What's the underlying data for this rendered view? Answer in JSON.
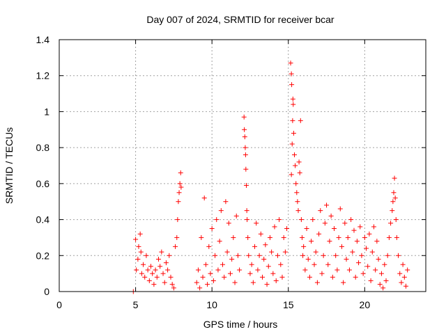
{
  "chart_data": {
    "type": "scatter",
    "title": "Day 007 of 2024, SRMTID for receiver bcar",
    "xlabel": "GPS time / hours",
    "ylabel": "SRMTID / TECUs",
    "xlim": [
      0,
      24
    ],
    "ylim": [
      0,
      1.4
    ],
    "xticks": [
      0,
      5,
      10,
      15,
      20
    ],
    "xtick_labels": [
      "0",
      "5",
      "10",
      "15",
      "20"
    ],
    "yticks": [
      0,
      0.2,
      0.4,
      0.6,
      0.8,
      1,
      1.2,
      1.4
    ],
    "ytick_labels": [
      "0",
      "0.2",
      "0.4",
      "0.6",
      "0.8",
      "1",
      "1.2",
      "1.4"
    ],
    "grid": true,
    "marker": "+",
    "color": "#ff0000",
    "series": [
      {
        "name": "SRMTID",
        "points": [
          [
            4.85,
            0.0
          ],
          [
            5.0,
            0.29
          ],
          [
            5.05,
            0.12
          ],
          [
            5.15,
            0.18
          ],
          [
            5.2,
            0.25
          ],
          [
            5.3,
            0.32
          ],
          [
            5.35,
            0.22
          ],
          [
            5.4,
            0.1
          ],
          [
            5.5,
            0.15
          ],
          [
            5.6,
            0.08
          ],
          [
            5.7,
            0.2
          ],
          [
            5.8,
            0.12
          ],
          [
            5.9,
            0.06
          ],
          [
            6.0,
            0.14
          ],
          [
            6.1,
            0.1
          ],
          [
            6.2,
            0.04
          ],
          [
            6.3,
            0.12
          ],
          [
            6.4,
            0.08
          ],
          [
            6.5,
            0.18
          ],
          [
            6.6,
            0.14
          ],
          [
            6.7,
            0.22
          ],
          [
            6.8,
            0.1
          ],
          [
            6.9,
            0.05
          ],
          [
            7.0,
            0.16
          ],
          [
            7.1,
            0.12
          ],
          [
            7.2,
            0.2
          ],
          [
            7.3,
            0.08
          ],
          [
            7.4,
            0.04
          ],
          [
            7.5,
            0.02
          ],
          [
            7.6,
            0.25
          ],
          [
            7.7,
            0.3
          ],
          [
            7.75,
            0.4
          ],
          [
            7.8,
            0.5
          ],
          [
            7.85,
            0.55
          ],
          [
            7.9,
            0.6
          ],
          [
            7.95,
            0.66
          ],
          [
            7.98,
            0.58
          ],
          [
            9.0,
            0.05
          ],
          [
            9.1,
            0.12
          ],
          [
            9.2,
            0.02
          ],
          [
            9.3,
            0.3
          ],
          [
            9.4,
            0.08
          ],
          [
            9.5,
            0.52
          ],
          [
            9.6,
            0.15
          ],
          [
            9.7,
            0.04
          ],
          [
            9.8,
            0.25
          ],
          [
            9.9,
            0.1
          ],
          [
            10.0,
            0.35
          ],
          [
            10.1,
            0.06
          ],
          [
            10.2,
            0.2
          ],
          [
            10.3,
            0.4
          ],
          [
            10.4,
            0.12
          ],
          [
            10.5,
            0.28
          ],
          [
            10.6,
            0.45
          ],
          [
            10.7,
            0.15
          ],
          [
            10.8,
            0.08
          ],
          [
            10.9,
            0.5
          ],
          [
            11.0,
            0.22
          ],
          [
            11.1,
            0.38
          ],
          [
            11.2,
            0.1
          ],
          [
            11.3,
            0.18
          ],
          [
            11.4,
            0.3
          ],
          [
            11.5,
            0.05
          ],
          [
            11.6,
            0.42
          ],
          [
            11.7,
            0.2
          ],
          [
            11.8,
            0.12
          ],
          [
            12.1,
            0.97
          ],
          [
            12.12,
            0.9
          ],
          [
            12.15,
            0.86
          ],
          [
            12.18,
            0.8
          ],
          [
            12.2,
            0.76
          ],
          [
            12.22,
            0.68
          ],
          [
            12.25,
            0.59
          ],
          [
            12.28,
            0.45
          ],
          [
            12.3,
            0.4
          ],
          [
            12.35,
            0.3
          ],
          [
            12.4,
            0.2
          ],
          [
            12.5,
            0.1
          ],
          [
            12.6,
            0.15
          ],
          [
            12.7,
            0.05
          ],
          [
            12.8,
            0.25
          ],
          [
            12.9,
            0.38
          ],
          [
            13.0,
            0.12
          ],
          [
            13.1,
            0.2
          ],
          [
            13.2,
            0.32
          ],
          [
            13.3,
            0.08
          ],
          [
            13.4,
            0.18
          ],
          [
            13.5,
            0.26
          ],
          [
            13.6,
            0.04
          ],
          [
            13.7,
            0.14
          ],
          [
            13.8,
            0.3
          ],
          [
            13.9,
            0.22
          ],
          [
            14.0,
            0.1
          ],
          [
            14.1,
            0.36
          ],
          [
            14.2,
            0.06
          ],
          [
            14.3,
            0.2
          ],
          [
            14.4,
            0.4
          ],
          [
            14.5,
            0.15
          ],
          [
            14.6,
            0.08
          ],
          [
            14.7,
            0.3
          ],
          [
            14.8,
            0.22
          ],
          [
            14.9,
            0.35
          ],
          [
            15.15,
            1.27
          ],
          [
            15.2,
            1.21
          ],
          [
            15.22,
            1.15
          ],
          [
            15.3,
            1.07
          ],
          [
            15.32,
            1.04
          ],
          [
            15.28,
            0.95
          ],
          [
            15.35,
            0.88
          ],
          [
            15.25,
            0.82
          ],
          [
            15.4,
            0.76
          ],
          [
            15.45,
            0.7
          ],
          [
            15.2,
            0.65
          ],
          [
            15.5,
            0.6
          ],
          [
            15.55,
            0.55
          ],
          [
            15.6,
            0.5
          ],
          [
            15.65,
            0.45
          ],
          [
            15.7,
            0.72
          ],
          [
            15.75,
            0.66
          ],
          [
            15.8,
            0.95
          ],
          [
            15.85,
            0.4
          ],
          [
            15.9,
            0.3
          ],
          [
            15.95,
            0.2
          ],
          [
            16.0,
            0.25
          ],
          [
            16.1,
            0.12
          ],
          [
            16.2,
            0.35
          ],
          [
            16.3,
            0.18
          ],
          [
            16.4,
            0.08
          ],
          [
            16.5,
            0.28
          ],
          [
            16.6,
            0.4
          ],
          [
            16.7,
            0.15
          ],
          [
            16.8,
            0.22
          ],
          [
            16.9,
            0.05
          ],
          [
            17.0,
            0.32
          ],
          [
            17.1,
            0.45
          ],
          [
            17.2,
            0.1
          ],
          [
            17.3,
            0.2
          ],
          [
            17.4,
            0.38
          ],
          [
            17.5,
            0.48
          ],
          [
            17.6,
            0.15
          ],
          [
            17.7,
            0.28
          ],
          [
            17.8,
            0.42
          ],
          [
            17.9,
            0.08
          ],
          [
            18.0,
            0.35
          ],
          [
            18.1,
            0.2
          ],
          [
            18.2,
            0.12
          ],
          [
            18.3,
            0.3
          ],
          [
            18.4,
            0.46
          ],
          [
            18.5,
            0.25
          ],
          [
            18.6,
            0.05
          ],
          [
            18.7,
            0.38
          ],
          [
            18.8,
            0.18
          ],
          [
            18.9,
            0.3
          ],
          [
            19.0,
            0.12
          ],
          [
            19.1,
            0.4
          ],
          [
            19.2,
            0.22
          ],
          [
            19.3,
            0.34
          ],
          [
            19.4,
            0.08
          ],
          [
            19.5,
            0.28
          ],
          [
            19.6,
            0.16
          ],
          [
            19.7,
            0.36
          ],
          [
            19.8,
            0.2
          ],
          [
            19.9,
            0.1
          ],
          [
            20.0,
            0.3
          ],
          [
            20.1,
            0.24
          ],
          [
            20.2,
            0.14
          ],
          [
            20.3,
            0.32
          ],
          [
            20.4,
            0.06
          ],
          [
            20.5,
            0.22
          ],
          [
            20.6,
            0.36
          ],
          [
            20.7,
            0.12
          ],
          [
            20.8,
            0.28
          ],
          [
            20.9,
            0.18
          ],
          [
            21.0,
            0.04
          ],
          [
            21.1,
            0.1
          ],
          [
            21.2,
            0.02
          ],
          [
            21.3,
            0.15
          ],
          [
            21.4,
            0.06
          ],
          [
            21.5,
            0.2
          ],
          [
            21.6,
            0.3
          ],
          [
            21.7,
            0.38
          ],
          [
            21.8,
            0.45
          ],
          [
            21.85,
            0.5
          ],
          [
            21.9,
            0.55
          ],
          [
            21.95,
            0.63
          ],
          [
            22.0,
            0.52
          ],
          [
            22.05,
            0.4
          ],
          [
            22.1,
            0.3
          ],
          [
            22.2,
            0.2
          ],
          [
            22.3,
            0.1
          ],
          [
            22.4,
            0.05
          ],
          [
            22.5,
            0.15
          ],
          [
            22.6,
            0.08
          ],
          [
            22.7,
            0.03
          ],
          [
            22.8,
            0.12
          ]
        ]
      }
    ]
  }
}
